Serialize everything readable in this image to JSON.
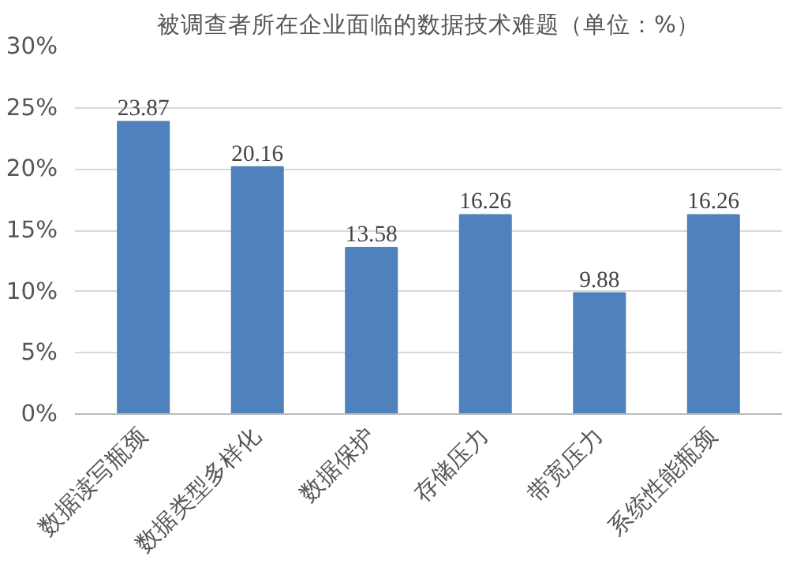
{
  "chart_data": {
    "type": "bar",
    "title": "被调查者所在企业面临的数据技术难题（单位：%）",
    "categories": [
      "数据读写瓶颈",
      "数据类型多样化",
      "数据保护",
      "存储压力",
      "带宽压力",
      "系统性能瓶颈"
    ],
    "values": [
      23.87,
      20.16,
      13.58,
      16.26,
      9.88,
      16.26
    ],
    "color": "#4f81bd",
    "data_labels": true,
    "ylim": [
      0,
      30
    ],
    "yticks": [
      {
        "value": 0,
        "label": "0%"
      },
      {
        "value": 5,
        "label": "5%"
      },
      {
        "value": 10,
        "label": "10%"
      },
      {
        "value": 15,
        "label": "15%"
      },
      {
        "value": 20,
        "label": "20%"
      },
      {
        "value": 25,
        "label": "25%"
      },
      {
        "value": 30,
        "label": "30%"
      }
    ],
    "grid": "y"
  }
}
